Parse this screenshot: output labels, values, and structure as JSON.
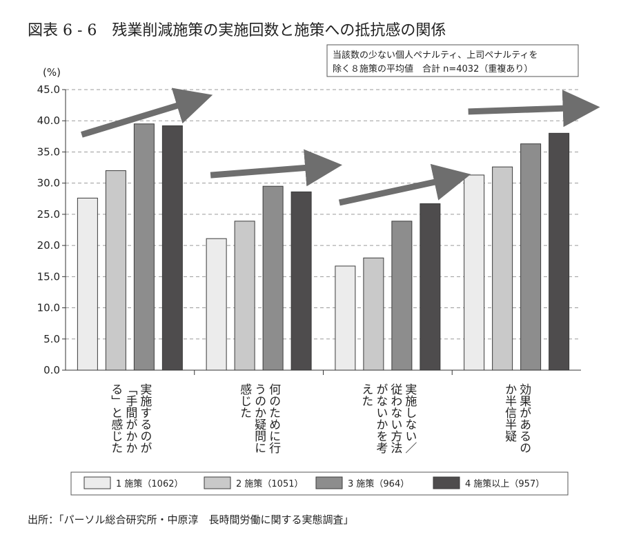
{
  "figure": {
    "title": "図表 6 - 6　残業削減施策の実施回数と施策への抵抗感の関係",
    "unit": "(%)",
    "note_lines": [
      "当該数の少ない個人ペナルティ、上司ペナルティを",
      "除く８施策の平均値　合計 n=4032（重複あり）"
    ],
    "source": "出所：「パーソル総合研究所・中原淳　長時間労働に関する実態調査」"
  },
  "chart_data": {
    "type": "bar",
    "categories": [
      "実施するのが「手間がかかる」と感じた",
      "何のために行うのか疑問に感じた",
      "実施しない／従わない方法がないかを考えた",
      "効果があるのか半信半疑"
    ],
    "category_lines": [
      [
        "実施するのが",
        "「手間がかか",
        "る」と感じた"
      ],
      [
        "何のために行",
        "うのか疑問に",
        "感じた"
      ],
      [
        "実施しない／",
        "従わない方法",
        "がないかを考",
        "えた"
      ],
      [
        "効果があるの",
        "か半信半疑"
      ]
    ],
    "series": [
      {
        "name": "1 施策（1062）",
        "color": "#ececec",
        "values": [
          27.6,
          21.1,
          16.7,
          31.3
        ]
      },
      {
        "name": "2 施策（1051）",
        "color": "#c9c9c9",
        "values": [
          32.0,
          23.9,
          18.0,
          32.6
        ]
      },
      {
        "name": "3 施策（964）",
        "color": "#8d8d8d",
        "values": [
          39.5,
          29.5,
          23.9,
          36.3
        ]
      },
      {
        "name": "4 施策以上（957）",
        "color": "#4e4c4d",
        "values": [
          39.2,
          28.6,
          26.7,
          38.0
        ]
      }
    ],
    "ylim": [
      0,
      45
    ],
    "ytick_step": 5,
    "yticks": [
      "0.0",
      "5.0",
      "10.0",
      "15.0",
      "20.0",
      "25.0",
      "30.0",
      "35.0",
      "40.0",
      "45.0"
    ],
    "grid": true,
    "legend_position": "bottom",
    "annotations": "rising trend arrow above each category group",
    "arrow_color": "#6e6e6e"
  }
}
